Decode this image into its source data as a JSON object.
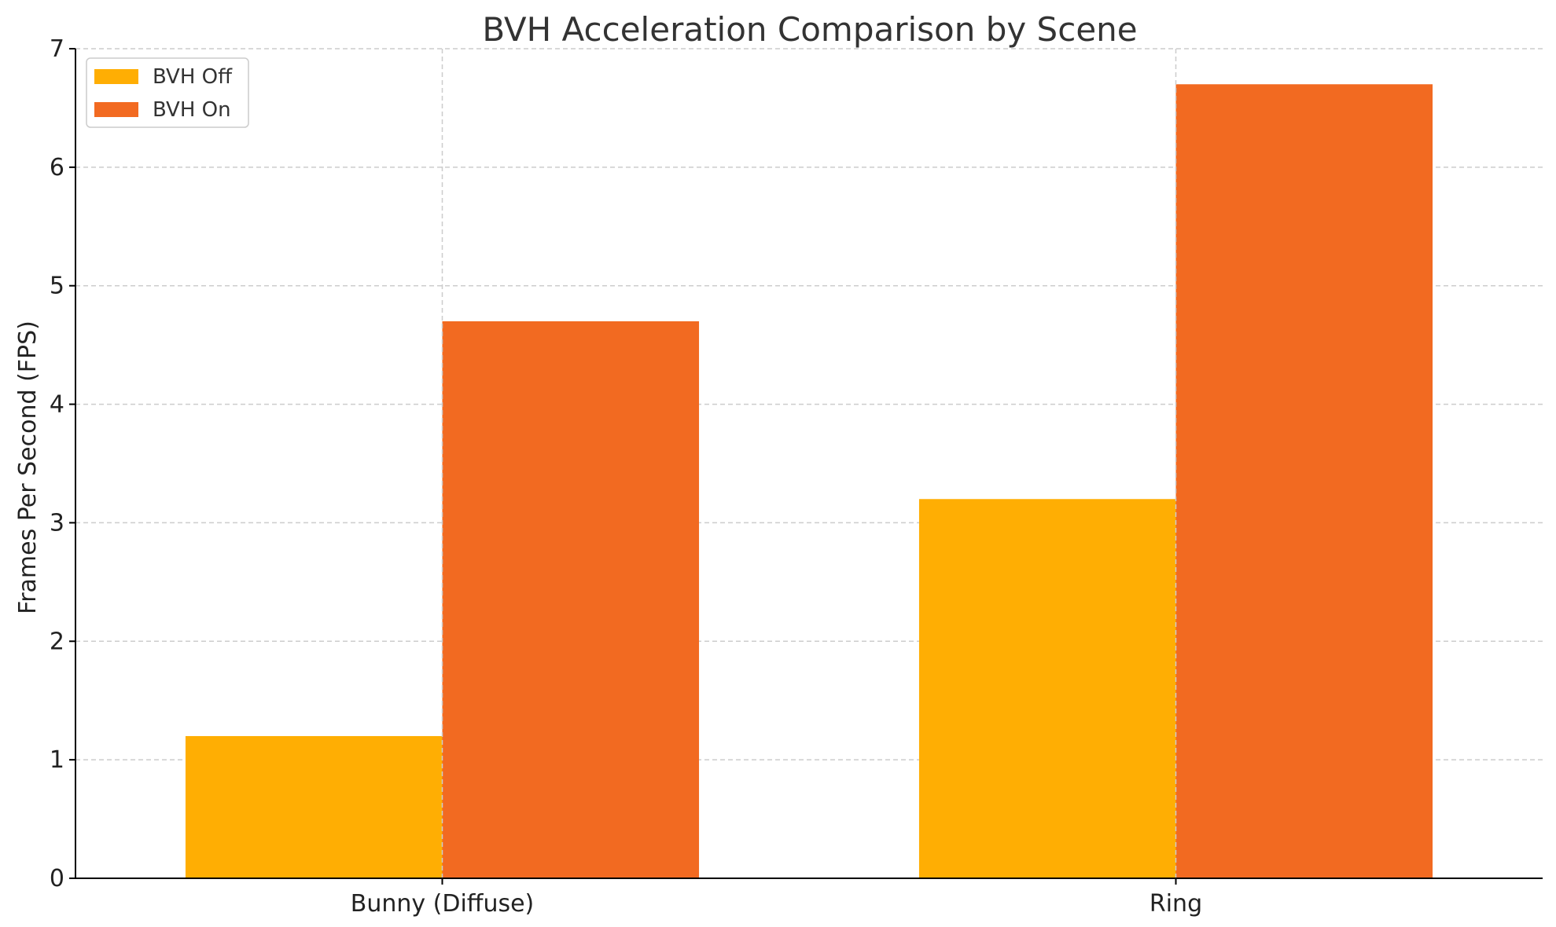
{
  "chart_data": {
    "type": "bar",
    "title": "BVH Acceleration Comparison by Scene",
    "xlabel": "",
    "ylabel": "Frames Per Second (FPS)",
    "categories": [
      "Bunny (Diffuse)",
      "Ring"
    ],
    "series": [
      {
        "name": "BVH Off",
        "values": [
          1.2,
          3.2
        ],
        "color": "#FFAE03"
      },
      {
        "name": "BVH On",
        "values": [
          4.7,
          6.7
        ],
        "color": "#F26A21"
      }
    ],
    "ylim": [
      0,
      7
    ],
    "yticks": [
      0,
      1,
      2,
      3,
      4,
      5,
      6,
      7
    ],
    "grid": true,
    "legend_position": "top-left"
  }
}
